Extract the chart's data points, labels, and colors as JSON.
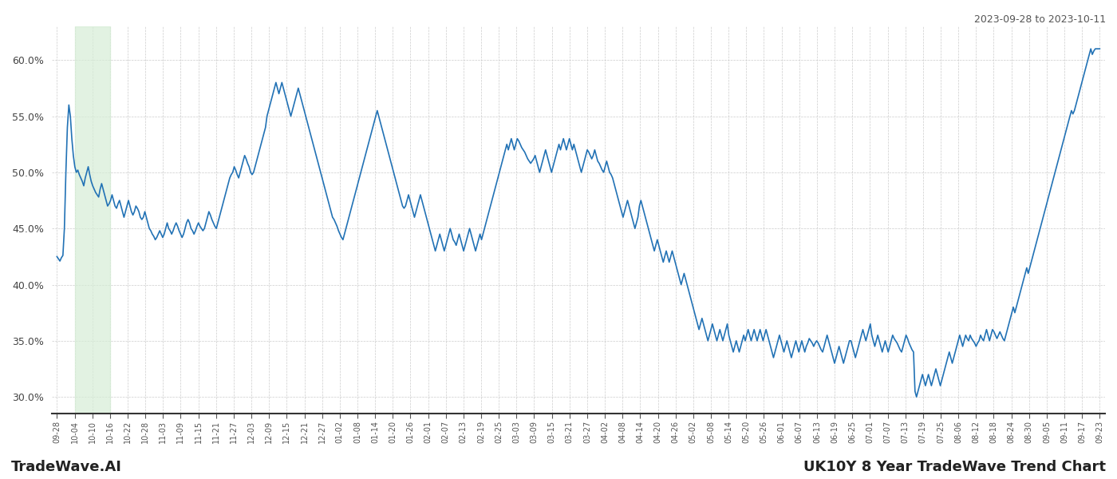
{
  "title_top_right": "2023-09-28 to 2023-10-11",
  "title_bottom_left": "TradeWave.AI",
  "title_bottom_right": "UK10Y 8 Year TradeWave Trend Chart",
  "line_color": "#2272b5",
  "line_width": 1.2,
  "highlight_color": "#d6edd6",
  "highlight_alpha": 0.7,
  "background_color": "#ffffff",
  "grid_color": "#cccccc",
  "ylim": [
    28.5,
    63.0
  ],
  "yticks": [
    30.0,
    35.0,
    40.0,
    45.0,
    50.0,
    55.0,
    60.0
  ],
  "x_labels": [
    "09-28",
    "10-04",
    "10-10",
    "10-16",
    "10-22",
    "10-28",
    "11-03",
    "11-09",
    "11-15",
    "11-21",
    "11-27",
    "12-03",
    "12-09",
    "12-15",
    "12-21",
    "12-27",
    "01-02",
    "01-08",
    "01-14",
    "01-20",
    "01-26",
    "02-01",
    "02-07",
    "02-13",
    "02-19",
    "02-25",
    "03-03",
    "03-09",
    "03-15",
    "03-21",
    "03-27",
    "04-02",
    "04-08",
    "04-14",
    "04-20",
    "04-26",
    "05-02",
    "05-08",
    "05-14",
    "05-20",
    "05-26",
    "06-01",
    "06-07",
    "06-13",
    "06-19",
    "06-25",
    "07-01",
    "07-07",
    "07-13",
    "07-19",
    "07-25",
    "08-06",
    "08-12",
    "08-18",
    "08-24",
    "08-30",
    "09-05",
    "09-11",
    "09-17",
    "09-23"
  ],
  "n_ticks": 60,
  "highlight_label_start": "10-04",
  "highlight_label_end": "10-16",
  "values": [
    42.5,
    42.3,
    42.1,
    42.4,
    42.6,
    45.0,
    50.0,
    54.0,
    56.0,
    55.0,
    53.0,
    51.5,
    50.5,
    50.0,
    50.2,
    49.8,
    49.5,
    49.2,
    48.8,
    49.5,
    50.0,
    50.5,
    49.8,
    49.2,
    48.8,
    48.5,
    48.2,
    48.0,
    47.8,
    48.5,
    49.0,
    48.5,
    48.0,
    47.5,
    47.0,
    47.2,
    47.5,
    48.0,
    47.5,
    47.0,
    46.8,
    47.2,
    47.5,
    47.0,
    46.5,
    46.0,
    46.5,
    47.0,
    47.5,
    47.0,
    46.5,
    46.2,
    46.5,
    47.0,
    46.8,
    46.5,
    46.0,
    45.8,
    46.0,
    46.5,
    46.0,
    45.5,
    45.0,
    44.8,
    44.5,
    44.3,
    44.0,
    44.2,
    44.5,
    44.8,
    44.5,
    44.2,
    44.5,
    45.0,
    45.5,
    45.0,
    44.8,
    44.5,
    44.8,
    45.2,
    45.5,
    45.2,
    44.8,
    44.5,
    44.2,
    44.5,
    45.0,
    45.5,
    45.8,
    45.5,
    45.0,
    44.8,
    44.5,
    44.8,
    45.2,
    45.5,
    45.2,
    45.0,
    44.8,
    45.0,
    45.5,
    46.0,
    46.5,
    46.2,
    45.8,
    45.5,
    45.2,
    45.0,
    45.5,
    46.0,
    46.5,
    47.0,
    47.5,
    48.0,
    48.5,
    49.0,
    49.5,
    49.8,
    50.0,
    50.5,
    50.2,
    49.8,
    49.5,
    50.0,
    50.5,
    51.0,
    51.5,
    51.2,
    50.8,
    50.5,
    50.0,
    49.8,
    50.0,
    50.5,
    51.0,
    51.5,
    52.0,
    52.5,
    53.0,
    53.5,
    54.0,
    55.0,
    55.5,
    56.0,
    56.5,
    57.0,
    57.5,
    58.0,
    57.5,
    57.0,
    57.5,
    58.0,
    57.5,
    57.0,
    56.5,
    56.0,
    55.5,
    55.0,
    55.5,
    56.0,
    56.5,
    57.0,
    57.5,
    57.0,
    56.5,
    56.0,
    55.5,
    55.0,
    54.5,
    54.0,
    53.5,
    53.0,
    52.5,
    52.0,
    51.5,
    51.0,
    50.5,
    50.0,
    49.5,
    49.0,
    48.5,
    48.0,
    47.5,
    47.0,
    46.5,
    46.0,
    45.8,
    45.5,
    45.2,
    44.8,
    44.5,
    44.2,
    44.0,
    44.5,
    45.0,
    45.5,
    46.0,
    46.5,
    47.0,
    47.5,
    48.0,
    48.5,
    49.0,
    49.5,
    50.0,
    50.5,
    51.0,
    51.5,
    52.0,
    52.5,
    53.0,
    53.5,
    54.0,
    54.5,
    55.0,
    55.5,
    55.0,
    54.5,
    54.0,
    53.5,
    53.0,
    52.5,
    52.0,
    51.5,
    51.0,
    50.5,
    50.0,
    49.5,
    49.0,
    48.5,
    48.0,
    47.5,
    47.0,
    46.8,
    47.0,
    47.5,
    48.0,
    47.5,
    47.0,
    46.5,
    46.0,
    46.5,
    47.0,
    47.5,
    48.0,
    47.5,
    47.0,
    46.5,
    46.0,
    45.5,
    45.0,
    44.5,
    44.0,
    43.5,
    43.0,
    43.5,
    44.0,
    44.5,
    44.0,
    43.5,
    43.0,
    43.5,
    44.0,
    44.5,
    45.0,
    44.5,
    44.0,
    43.8,
    43.5,
    44.0,
    44.5,
    44.0,
    43.5,
    43.0,
    43.5,
    44.0,
    44.5,
    45.0,
    44.5,
    44.0,
    43.5,
    43.0,
    43.5,
    44.0,
    44.5,
    44.0,
    44.5,
    45.0,
    45.5,
    46.0,
    46.5,
    47.0,
    47.5,
    48.0,
    48.5,
    49.0,
    49.5,
    50.0,
    50.5,
    51.0,
    51.5,
    52.0,
    52.5,
    52.0,
    52.5,
    53.0,
    52.5,
    52.0,
    52.5,
    53.0,
    52.8,
    52.5,
    52.2,
    52.0,
    51.8,
    51.5,
    51.2,
    51.0,
    50.8,
    51.0,
    51.2,
    51.5,
    51.0,
    50.5,
    50.0,
    50.5,
    51.0,
    51.5,
    52.0,
    51.5,
    51.0,
    50.5,
    50.0,
    50.5,
    51.0,
    51.5,
    52.0,
    52.5,
    52.0,
    52.5,
    53.0,
    52.5,
    52.0,
    52.5,
    53.0,
    52.5,
    52.0,
    52.5,
    52.0,
    51.5,
    51.0,
    50.5,
    50.0,
    50.5,
    51.0,
    51.5,
    52.0,
    51.8,
    51.5,
    51.2,
    51.5,
    52.0,
    51.5,
    51.0,
    50.8,
    50.5,
    50.2,
    50.0,
    50.5,
    51.0,
    50.5,
    50.0,
    49.8,
    49.5,
    49.0,
    48.5,
    48.0,
    47.5,
    47.0,
    46.5,
    46.0,
    46.5,
    47.0,
    47.5,
    47.0,
    46.5,
    46.0,
    45.5,
    45.0,
    45.5,
    46.0,
    47.0,
    47.5,
    47.0,
    46.5,
    46.0,
    45.5,
    45.0,
    44.5,
    44.0,
    43.5,
    43.0,
    43.5,
    44.0,
    43.5,
    43.0,
    42.5,
    42.0,
    42.5,
    43.0,
    42.5,
    42.0,
    42.5,
    43.0,
    42.5,
    42.0,
    41.5,
    41.0,
    40.5,
    40.0,
    40.5,
    41.0,
    40.5,
    40.0,
    39.5,
    39.0,
    38.5,
    38.0,
    37.5,
    37.0,
    36.5,
    36.0,
    36.5,
    37.0,
    36.5,
    36.0,
    35.5,
    35.0,
    35.5,
    36.0,
    36.5,
    36.0,
    35.5,
    35.0,
    35.5,
    36.0,
    35.5,
    35.0,
    35.5,
    36.0,
    36.5,
    35.5,
    35.0,
    34.5,
    34.0,
    34.5,
    35.0,
    34.5,
    34.0,
    34.5,
    35.0,
    35.5,
    35.0,
    35.5,
    36.0,
    35.5,
    35.0,
    35.5,
    36.0,
    35.5,
    35.0,
    35.5,
    36.0,
    35.5,
    35.0,
    35.5,
    36.0,
    35.5,
    35.0,
    34.5,
    34.0,
    33.5,
    34.0,
    34.5,
    35.0,
    35.5,
    35.0,
    34.5,
    34.0,
    34.5,
    35.0,
    34.5,
    34.0,
    33.5,
    34.0,
    34.5,
    35.0,
    34.5,
    34.0,
    34.5,
    35.0,
    34.5,
    34.0,
    34.5,
    34.8,
    35.2,
    35.0,
    34.8,
    34.5,
    34.8,
    35.0,
    34.8,
    34.5,
    34.2,
    34.0,
    34.5,
    35.0,
    35.5,
    35.0,
    34.5,
    34.0,
    33.5,
    33.0,
    33.5,
    34.0,
    34.5,
    34.0,
    33.5,
    33.0,
    33.5,
    34.0,
    34.5,
    35.0,
    35.0,
    34.5,
    34.0,
    33.5,
    34.0,
    34.5,
    35.0,
    35.5,
    36.0,
    35.5,
    35.0,
    35.5,
    36.0,
    36.5,
    35.5,
    35.0,
    34.5,
    35.0,
    35.5,
    35.0,
    34.5,
    34.0,
    34.5,
    35.0,
    34.5,
    34.0,
    34.5,
    35.0,
    35.5,
    35.2,
    35.0,
    34.8,
    34.5,
    34.2,
    34.0,
    34.5,
    35.0,
    35.5,
    35.2,
    34.8,
    34.5,
    34.2,
    34.0,
    30.5,
    30.0,
    30.5,
    31.0,
    31.5,
    32.0,
    31.5,
    31.0,
    31.5,
    32.0,
    31.5,
    31.0,
    31.5,
    32.0,
    32.5,
    32.0,
    31.5,
    31.0,
    31.5,
    32.0,
    32.5,
    33.0,
    33.5,
    34.0,
    33.5,
    33.0,
    33.5,
    34.0,
    34.5,
    35.0,
    35.5,
    35.0,
    34.5,
    35.0,
    35.5,
    35.2,
    35.0,
    35.5,
    35.2,
    35.0,
    34.8,
    34.5,
    34.8,
    35.0,
    35.5,
    35.2,
    35.0,
    35.5,
    36.0,
    35.5,
    35.0,
    35.5,
    36.0,
    35.8,
    35.5,
    35.2,
    35.5,
    35.8,
    35.5,
    35.2,
    35.0,
    35.5,
    36.0,
    36.5,
    37.0,
    37.5,
    38.0,
    37.5,
    38.0,
    38.5,
    39.0,
    39.5,
    40.0,
    40.5,
    41.0,
    41.5,
    41.0,
    41.5,
    42.0,
    42.5,
    43.0,
    43.5,
    44.0,
    44.5,
    45.0,
    45.5,
    46.0,
    46.5,
    47.0,
    47.5,
    48.0,
    48.5,
    49.0,
    49.5,
    50.0,
    50.5,
    51.0,
    51.5,
    52.0,
    52.5,
    53.0,
    53.5,
    54.0,
    54.5,
    55.0,
    55.5,
    55.2,
    55.5,
    56.0,
    56.5,
    57.0,
    57.5,
    58.0,
    58.5,
    59.0,
    59.5,
    60.0,
    60.5,
    61.0,
    60.5,
    60.8,
    61.0,
    61.0,
    61.0,
    61.0
  ]
}
